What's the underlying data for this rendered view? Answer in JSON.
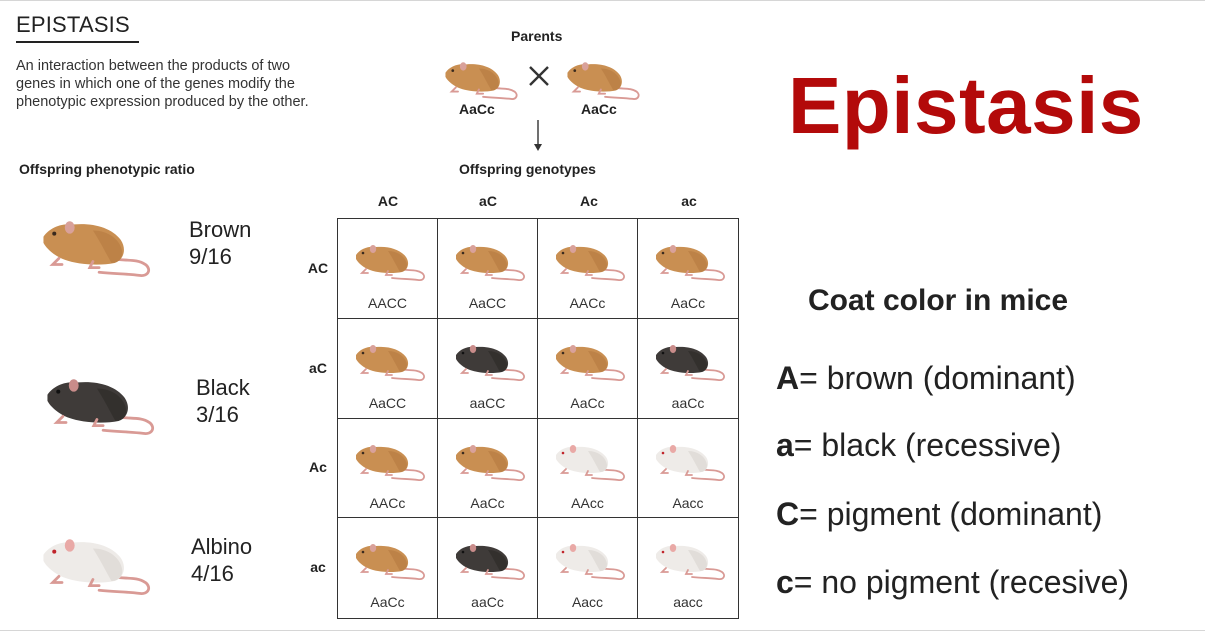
{
  "header": {
    "title": "EPISTASIS",
    "definition": "An interaction between the products of two genes in which one of the genes modify the phenotypic expression produced by the other."
  },
  "phenotypic_ratio": {
    "title": "Offspring phenotypic ratio",
    "items": [
      {
        "label": "Brown",
        "ratio": "9/16",
        "mouse": "brown-mouse-icon"
      },
      {
        "label": "Black",
        "ratio": "3/16",
        "mouse": "black-mouse-icon"
      },
      {
        "label": "Albino",
        "ratio": "4/16",
        "mouse": "albino-mouse-icon"
      }
    ]
  },
  "parents": {
    "title": "Parents",
    "left_genotype": "AaCc",
    "right_genotype": "AaCc",
    "cross_symbol": "cross-icon"
  },
  "punnett": {
    "title": "Offspring genotypes",
    "col_headers": [
      "AC",
      "aC",
      "Ac",
      "ac"
    ],
    "row_headers": [
      "AC",
      "aC",
      "Ac",
      "ac"
    ],
    "cells": [
      [
        {
          "genotype": "AACC",
          "color": "brown"
        },
        {
          "genotype": "AaCC",
          "color": "brown"
        },
        {
          "genotype": "AACc",
          "color": "brown"
        },
        {
          "genotype": "AaCc",
          "color": "brown"
        }
      ],
      [
        {
          "genotype": "AaCC",
          "color": "brown"
        },
        {
          "genotype": "aaCC",
          "color": "black"
        },
        {
          "genotype": "AaCc",
          "color": "brown"
        },
        {
          "genotype": "aaCc",
          "color": "black"
        }
      ],
      [
        {
          "genotype": "AACc",
          "color": "brown"
        },
        {
          "genotype": "AaCc",
          "color": "brown"
        },
        {
          "genotype": "AAcc",
          "color": "albino"
        },
        {
          "genotype": "Aacc",
          "color": "albino"
        }
      ],
      [
        {
          "genotype": "AaCc",
          "color": "brown"
        },
        {
          "genotype": "aaCc",
          "color": "black"
        },
        {
          "genotype": "Aacc",
          "color": "albino"
        },
        {
          "genotype": "aacc",
          "color": "albino"
        }
      ]
    ]
  },
  "right_panel": {
    "big_title": "Epistasis",
    "subtitle": "Coat color in mice",
    "keys": [
      {
        "allele": "A",
        "desc": "= brown (dominant)"
      },
      {
        "allele": "a",
        "desc": "= black (recessive)"
      },
      {
        "allele": "C",
        "desc": "= pigment (dominant)"
      },
      {
        "allele": "c",
        "desc": "= no pigment (recesive)"
      }
    ]
  },
  "colors": {
    "title_red": "#b30a0a",
    "brown_coat": "#c98f52",
    "black_coat": "#3f3b39",
    "albino_coat": "#eeebe8",
    "tail_pink": "#d99a95"
  }
}
